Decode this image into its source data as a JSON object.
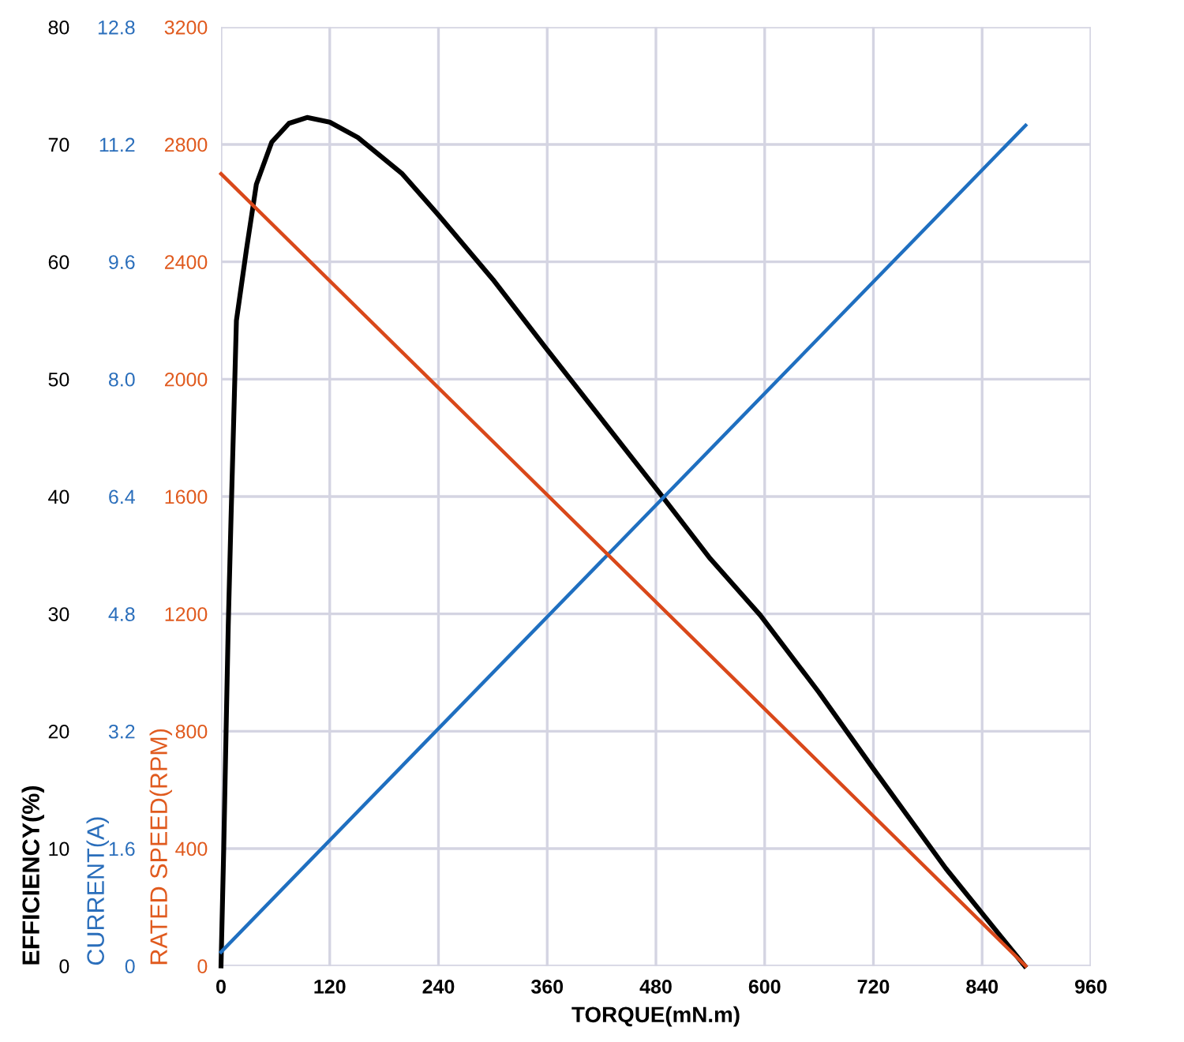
{
  "chart_data": {
    "type": "line",
    "xlabel": "TORQUE(mN.m)",
    "ylabel": "EFFICIENCY(%)",
    "y2label": "CURRENT(A)",
    "y3label": "RATED SPEED(RPM)",
    "xlim": [
      0,
      960
    ],
    "xticks": [
      0,
      120,
      240,
      360,
      480,
      600,
      720,
      840,
      960
    ],
    "ylim": [
      0,
      80
    ],
    "yticks": [
      0,
      10,
      20,
      30,
      40,
      50,
      60,
      70,
      80
    ],
    "y2lim": [
      0,
      12.8
    ],
    "y2ticks": [
      {
        "value": 0,
        "label": "0"
      },
      1.6,
      3.2,
      4.8,
      6.4,
      {
        "value": 8.0,
        "label": "8.0"
      },
      9.6,
      11.2,
      12.8
    ],
    "y3lim": [
      0,
      3200
    ],
    "y3ticks": [
      0,
      400,
      800,
      1200,
      1600,
      2000,
      2400,
      2800,
      3200
    ],
    "grid": true,
    "legend": false,
    "line_style": "solid",
    "marker": "none",
    "series": [
      {
        "color": "#000000",
        "x": [
          0,
          3,
          5.6,
          8,
          11,
          17,
          28,
          39,
          56,
          75,
          95,
          120,
          151,
          200,
          241,
          300,
          358,
          420,
          487,
          540,
          595,
          660,
          719,
          800,
          887
        ],
        "values": [
          0,
          10,
          20,
          29,
          38,
          55,
          61,
          66.6,
          70.2,
          71.8,
          72.3,
          71.9,
          70.6,
          67.5,
          63.9,
          58.5,
          52.7,
          46.6,
          40,
          34.7,
          29.9,
          23.3,
          16.9,
          8.3,
          0
        ]
      },
      {
        "color": "#1f6fc0",
        "axis": "y2",
        "x": [
          0,
          888
        ],
        "values": [
          0.19,
          11.46
        ]
      },
      {
        "color": "#d9481a",
        "axis": "y3",
        "x": [
          0,
          888
        ],
        "values": [
          2700,
          0
        ]
      }
    ]
  }
}
